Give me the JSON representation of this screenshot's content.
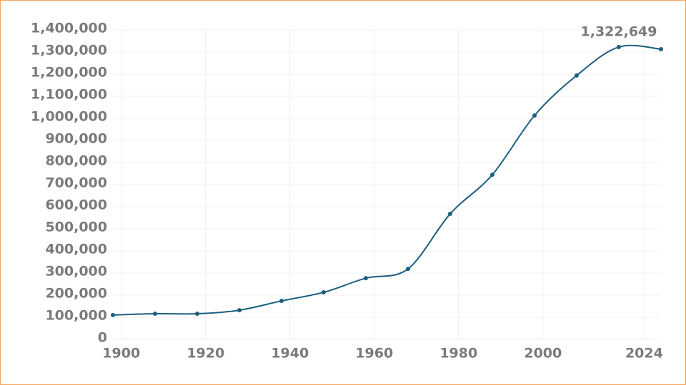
{
  "chart_data": {
    "type": "line",
    "x": [
      1898,
      1908,
      1918,
      1928,
      1938,
      1948,
      1958,
      1968,
      1978,
      1988,
      1998,
      2008,
      2018,
      2028
    ],
    "series": [
      {
        "color": "#1b5e80",
        "values": [
          110000,
          116000,
          116000,
          132000,
          174000,
          213000,
          277000,
          319000,
          568000,
          745000,
          1013000,
          1194000,
          1322649,
          1313000
        ],
        "value_labels": [
          null,
          null,
          null,
          null,
          null,
          null,
          null,
          null,
          null,
          null,
          null,
          null,
          "1,322,649",
          null
        ]
      }
    ],
    "xlim": [
      1897.5,
      2028
    ],
    "xticks": [
      1900,
      1920,
      1940,
      1960,
      1980,
      2000,
      2024
    ],
    "ylim": [
      0,
      1400000
    ],
    "yticks": [
      0,
      {
        "value": 100000,
        "label": "100,000"
      },
      {
        "value": 200000,
        "label": "200,000"
      },
      {
        "value": 300000,
        "label": "300,000"
      },
      {
        "value": 400000,
        "label": "400,000"
      },
      {
        "value": 500000,
        "label": "500,000"
      },
      {
        "value": 600000,
        "label": "600,000"
      },
      {
        "value": 700000,
        "label": "700,000"
      },
      {
        "value": 800000,
        "label": "800,000"
      },
      {
        "value": 900000,
        "label": "900,000"
      },
      {
        "value": 1000000,
        "label": "1,000,000"
      },
      {
        "value": 1100000,
        "label": "1,100,000"
      },
      {
        "value": 1200000,
        "label": "1,200,000"
      },
      {
        "value": 1300000,
        "label": "1,300,000"
      },
      {
        "value": 1400000,
        "label": "1,400,000"
      }
    ],
    "grid": true
  }
}
